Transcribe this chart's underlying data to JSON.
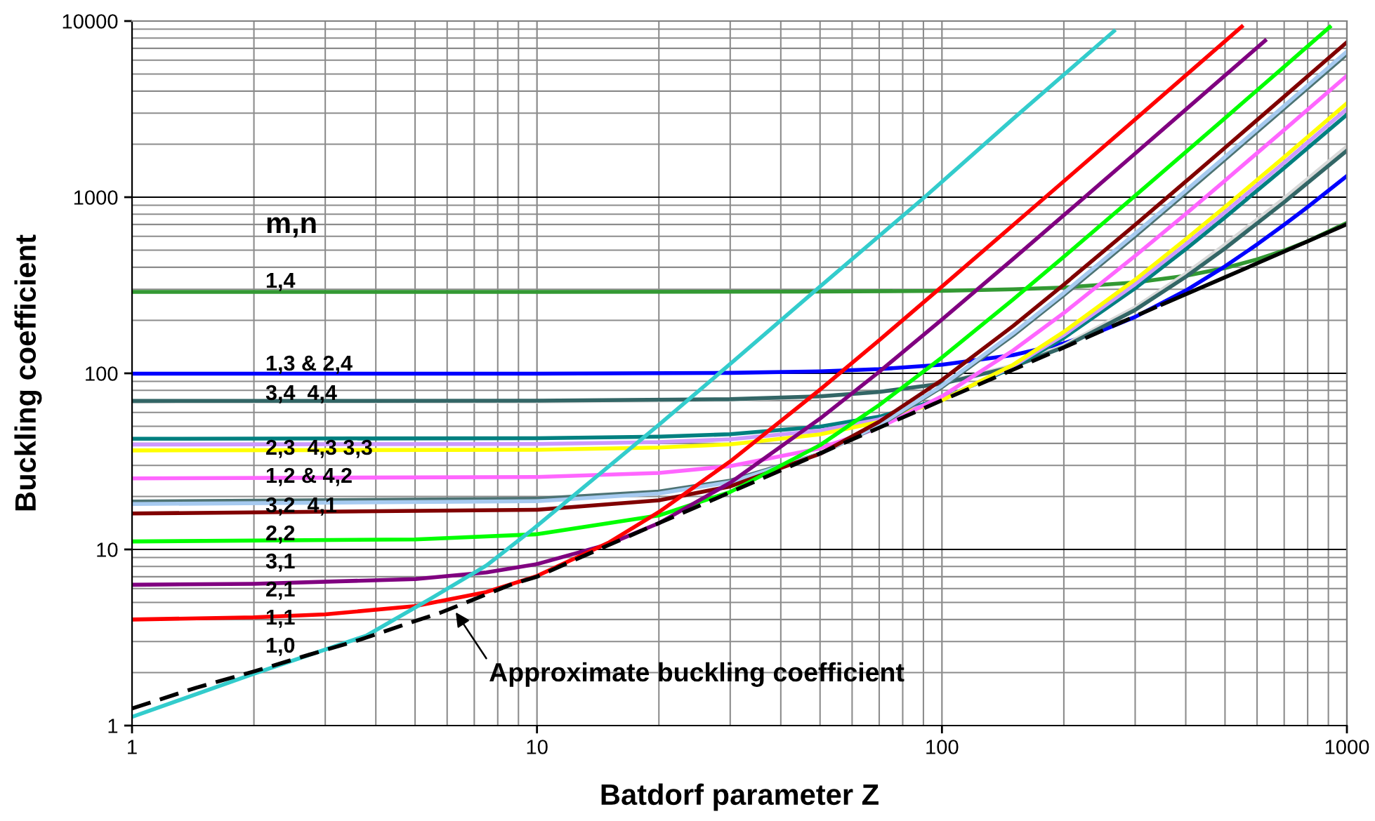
{
  "chart_data": {
    "type": "line",
    "log": "xy",
    "xlim": [
      1,
      1000
    ],
    "ylim": [
      1,
      10000
    ],
    "xticks": [
      1,
      10,
      100,
      1000
    ],
    "yticks": [
      1,
      10,
      100,
      1000,
      10000
    ],
    "grid": true,
    "xlabel": "Batdorf parameter Z",
    "ylabel": "Buckling coefficient",
    "series": [
      {
        "color": "#339933",
        "x": [
          1,
          10,
          50,
          100,
          150,
          200,
          300,
          400,
          500,
          600,
          700,
          800,
          1000
        ],
        "values": [
          290,
          290,
          291,
          294,
          300,
          307,
          328,
          358,
          396,
          443,
          498,
          562,
          715
        ]
      },
      {
        "color": "#0000ff",
        "x": [
          1,
          10,
          30,
          50,
          70,
          100,
          150,
          200,
          250,
          300,
          400,
          500,
          600,
          700,
          800,
          1000
        ],
        "values": [
          99.5,
          99.6,
          100.6,
          102.6,
          105.6,
          112,
          127,
          148,
          176,
          209,
          295,
          405,
          539,
          697,
          880,
          1320
        ]
      },
      {
        "color": "#d9d9d9",
        "x": [
          1,
          10,
          30,
          50,
          70,
          100,
          150,
          200,
          300,
          400,
          500,
          700,
          1000
        ],
        "values": [
          69,
          69.2,
          70.7,
          73.7,
          78.2,
          87.7,
          111,
          144,
          237,
          368,
          537,
          985,
          1940
        ]
      },
      {
        "color": "#336666",
        "x": [
          1,
          10,
          30,
          50,
          70,
          100,
          150,
          200,
          300,
          400,
          500,
          700,
          1000
        ],
        "values": [
          69.7,
          69.9,
          71.3,
          74.1,
          78.4,
          87.4,
          109,
          141,
          229,
          353,
          512,
          937,
          1840
        ]
      },
      {
        "color": "#008080",
        "x": [
          1,
          10,
          20,
          30,
          50,
          70,
          100,
          150,
          200,
          300,
          400,
          500,
          700,
          1000
        ],
        "values": [
          42.5,
          42.8,
          43.7,
          45.1,
          49.8,
          56.7,
          71.5,
          108,
          159,
          304,
          507,
          768,
          1464,
          2943
        ]
      },
      {
        "color": "#cc99ff",
        "x": [
          1,
          10,
          20,
          30,
          50,
          70,
          100,
          150,
          200,
          300,
          400,
          500,
          700,
          1000
        ],
        "values": [
          39.4,
          39.7,
          40.7,
          42.2,
          47.2,
          54.7,
          70.7,
          110,
          165,
          321,
          540,
          822,
          1573,
          3169
        ]
      },
      {
        "color": "#ffff00",
        "x": [
          1,
          10,
          20,
          30,
          50,
          70,
          100,
          150,
          200,
          300,
          400,
          500,
          700,
          1000
        ],
        "values": [
          36.5,
          36.8,
          37.9,
          39.5,
          45,
          53,
          70.3,
          112,
          172,
          340,
          577,
          880,
          1690,
          3412
        ]
      },
      {
        "color": "#ff66ff",
        "x": [
          1,
          10,
          20,
          30,
          50,
          70,
          100,
          150,
          200,
          300,
          400,
          500,
          700,
          1000
        ],
        "values": [
          25.3,
          25.8,
          27.2,
          29.7,
          37.5,
          49.2,
          74,
          135,
          220,
          464,
          804,
          1243,
          2411,
          4895
        ]
      },
      {
        "color": "#4d7373",
        "x": [
          1,
          10,
          20,
          30,
          50,
          70,
          100,
          150,
          200,
          300,
          400,
          500,
          700,
          1000
        ],
        "values": [
          18.7,
          19.4,
          21.3,
          24.6,
          34.9,
          50.5,
          83.5,
          164.5,
          278,
          602,
          1055,
          1639,
          3194,
          6500
        ]
      },
      {
        "color": "#a6caf0",
        "x": [
          1,
          10,
          20,
          30,
          50,
          70,
          100,
          150,
          200,
          300,
          400,
          500,
          700,
          1000
        ],
        "values": [
          18.1,
          18.8,
          20.8,
          24.1,
          34.9,
          50.9,
          85.1,
          169,
          286,
          621,
          1090,
          1693,
          3301,
          6718
        ]
      },
      {
        "color": "#800000",
        "x": [
          1,
          10,
          20,
          30,
          50,
          70,
          100,
          150,
          200,
          300,
          400,
          500,
          700,
          1000
        ],
        "values": [
          16,
          16.8,
          19,
          22.8,
          34.9,
          53.1,
          91.7,
          186,
          319,
          697,
          1227,
          1909,
          3725,
          7586
        ]
      },
      {
        "color": "#00ff00",
        "x": [
          1,
          5,
          10,
          20,
          30,
          50,
          70,
          100,
          150,
          200,
          300,
          500,
          700,
          907
        ],
        "values": [
          11.1,
          11.4,
          12.2,
          15.6,
          21.2,
          39.1,
          66,
          123,
          263,
          459,
          1019,
          2811,
          5499,
          9250
        ]
      },
      {
        "color": "#800080",
        "x": [
          1,
          2,
          5,
          7.5,
          10,
          15,
          20,
          30,
          50,
          70,
          100,
          150,
          200,
          300,
          400,
          628
        ],
        "values": [
          6.3,
          6.38,
          6.79,
          7.4,
          8.26,
          10.7,
          14.1,
          23.9,
          55.3,
          102,
          202,
          447,
          790,
          1770,
          3142,
          7736
        ]
      },
      {
        "color": "#ff0000",
        "x": [
          1,
          2,
          3,
          5,
          7.5,
          10,
          15,
          20,
          30,
          50,
          70,
          100,
          150,
          200,
          300,
          550
        ],
        "values": [
          4.0,
          4.12,
          4.28,
          4.77,
          5.73,
          7.07,
          10.9,
          16.3,
          31.6,
          80.8,
          154,
          311,
          695,
          1232,
          2767,
          9290
        ]
      },
      {
        "color": "#33cccc",
        "x": [
          1,
          2,
          3.8,
          5.5,
          7.5,
          9.8,
          12.5,
          20,
          30,
          50,
          90.6,
          150,
          266
        ],
        "values": [
          1.12,
          1.97,
          3.25,
          5.3,
          8.1,
          13.1,
          20.8,
          51,
          113,
          311,
          1000,
          2790,
          8770
        ]
      },
      {
        "color": "#000000",
        "line_style": "dashed",
        "x": [
          1,
          1.44,
          2,
          2.73,
          3.57,
          4.92,
          5.77,
          8.6,
          10,
          12.5,
          20,
          30,
          50,
          70,
          100,
          150,
          200,
          300,
          350
        ],
        "values": [
          1.25,
          1.64,
          2.03,
          2.52,
          3.02,
          3.87,
          4.37,
          6.3,
          7.0,
          8.8,
          14.1,
          21.1,
          35.1,
          49.1,
          70.2,
          105,
          140,
          211,
          246
        ]
      },
      {
        "color": "#000000",
        "x": [
          350,
          500,
          700,
          1000
        ],
        "values": [
          246,
          351,
          491,
          702
        ]
      }
    ],
    "annotations": [
      "m,n",
      "1,4",
      "1,3 & 2,4",
      "3,4  4,4",
      "2,3  4,3 3,3",
      "1,2 & 4,2",
      "3,2  4,1",
      "2,2",
      "3,1",
      "2,1",
      "1,1",
      "1,0",
      {
        "text": "Approximate buckling coefficient",
        "x": 6.3,
        "y": 4.4
      }
    ]
  }
}
